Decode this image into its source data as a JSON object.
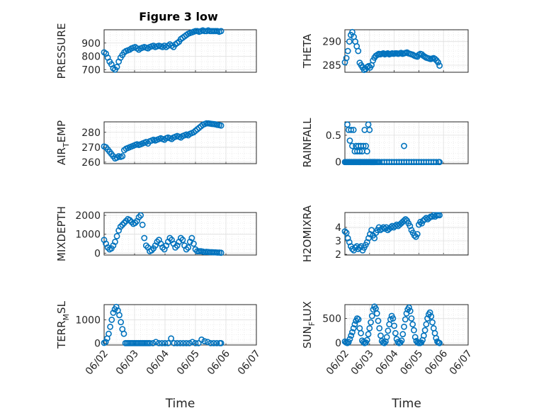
{
  "figure": {
    "title": "Figure 3 low"
  },
  "colors": {
    "marker": "#0072BD",
    "axes": "#262626",
    "grid": "#dfdfdf",
    "background": "#ffffff"
  },
  "chart_data": [
    {
      "id": "pressure",
      "type": "scatter",
      "title": "Figure 3 low",
      "ylabel": "PRESSURE",
      "ylabel_parts": [
        "PRESSURE"
      ],
      "xlabel": "",
      "ylim": [
        680,
        1000
      ],
      "yticks": [
        700,
        800,
        900
      ],
      "xlim": [
        0,
        5
      ],
      "xticks": [
        "06/02",
        "06/03",
        "06/04",
        "06/05",
        "06/06",
        "06/07"
      ],
      "x": [
        0,
        0.06,
        0.12,
        0.18,
        0.24,
        0.3,
        0.36,
        0.42,
        0.48,
        0.54,
        0.6,
        0.66,
        0.72,
        0.78,
        0.84,
        0.9,
        0.96,
        1.02,
        1.08,
        1.14,
        1.2,
        1.26,
        1.32,
        1.38,
        1.44,
        1.5,
        1.56,
        1.62,
        1.68,
        1.74,
        1.8,
        1.86,
        1.92,
        1.98,
        2.04,
        2.1,
        2.16,
        2.22,
        2.28,
        2.34,
        2.4,
        2.46,
        2.52,
        2.58,
        2.64,
        2.7,
        2.76,
        2.82,
        2.88,
        2.94,
        3.0,
        3.06,
        3.12,
        3.18,
        3.24,
        3.3,
        3.36,
        3.42,
        3.48,
        3.54,
        3.6,
        3.66,
        3.72,
        3.78,
        3.84
      ],
      "y": [
        830,
        820,
        790,
        760,
        740,
        710,
        700,
        720,
        760,
        790,
        810,
        830,
        840,
        845,
        850,
        860,
        865,
        870,
        860,
        850,
        860,
        865,
        870,
        865,
        860,
        870,
        875,
        880,
        870,
        875,
        880,
        875,
        870,
        880,
        870,
        880,
        890,
        880,
        870,
        890,
        900,
        910,
        930,
        940,
        950,
        960,
        970,
        975,
        980,
        985,
        990,
        990,
        985,
        990,
        995,
        990,
        990,
        995,
        990,
        990,
        990,
        990,
        990,
        985,
        990
      ]
    },
    {
      "id": "theta",
      "type": "scatter",
      "ylabel": "THETA",
      "ylabel_parts": [
        "THETA"
      ],
      "ylim": [
        283.5,
        292.5
      ],
      "yticks": [
        285,
        290
      ],
      "xlim": [
        0,
        5
      ],
      "xticks": [
        "06/02",
        "06/03",
        "06/04",
        "06/05",
        "06/06",
        "06/07"
      ],
      "x": [
        0,
        0.06,
        0.12,
        0.18,
        0.24,
        0.3,
        0.36,
        0.42,
        0.48,
        0.54,
        0.6,
        0.66,
        0.72,
        0.78,
        0.84,
        0.9,
        0.96,
        1.02,
        1.08,
        1.14,
        1.2,
        1.26,
        1.32,
        1.38,
        1.44,
        1.5,
        1.56,
        1.62,
        1.68,
        1.74,
        1.8,
        1.86,
        1.92,
        1.98,
        2.04,
        2.1,
        2.16,
        2.22,
        2.28,
        2.34,
        2.4,
        2.46,
        2.52,
        2.58,
        2.64,
        2.7,
        2.76,
        2.82,
        2.88,
        2.94,
        3.0,
        3.06,
        3.12,
        3.18,
        3.24,
        3.3,
        3.36,
        3.42,
        3.48,
        3.54,
        3.6,
        3.66,
        3.72,
        3.78,
        3.84
      ],
      "y": [
        285.6,
        286.5,
        288.0,
        290.0,
        291.4,
        292.0,
        291.0,
        290.0,
        289.0,
        288.0,
        285.5,
        285.0,
        284.5,
        284.0,
        284.2,
        284.6,
        284.8,
        284.5,
        285.0,
        286.0,
        286.6,
        287.0,
        287.2,
        287.4,
        287.3,
        287.4,
        287.5,
        287.3,
        287.4,
        287.5,
        287.3,
        287.4,
        287.5,
        287.4,
        287.5,
        287.5,
        287.4,
        287.5,
        287.6,
        287.4,
        287.5,
        287.6,
        287.7,
        287.5,
        287.4,
        287.3,
        287.2,
        287.0,
        286.9,
        286.8,
        287.2,
        287.4,
        287.3,
        287.0,
        286.8,
        286.6,
        286.5,
        286.4,
        286.3,
        286.4,
        286.5,
        286.3,
        286.0,
        285.6,
        284.9
      ]
    },
    {
      "id": "air_temp",
      "type": "scatter",
      "ylabel": "AIR_TEMP",
      "ylabel_parts": [
        "AIR",
        "T",
        "EMP"
      ],
      "ylim": [
        259,
        287
      ],
      "yticks": [
        260,
        270,
        280
      ],
      "xlim": [
        0,
        5
      ],
      "xticks": [
        "06/02",
        "06/03",
        "06/04",
        "06/05",
        "06/06",
        "06/07"
      ],
      "x": [
        0,
        0.06,
        0.12,
        0.18,
        0.24,
        0.3,
        0.36,
        0.42,
        0.48,
        0.54,
        0.6,
        0.66,
        0.72,
        0.78,
        0.84,
        0.9,
        0.96,
        1.02,
        1.08,
        1.14,
        1.2,
        1.26,
        1.32,
        1.38,
        1.44,
        1.5,
        1.56,
        1.62,
        1.68,
        1.74,
        1.8,
        1.86,
        1.92,
        1.98,
        2.04,
        2.1,
        2.16,
        2.22,
        2.28,
        2.34,
        2.4,
        2.46,
        2.52,
        2.58,
        2.64,
        2.7,
        2.76,
        2.82,
        2.88,
        2.94,
        3.0,
        3.06,
        3.12,
        3.18,
        3.24,
        3.3,
        3.36,
        3.42,
        3.48,
        3.54,
        3.6,
        3.66,
        3.72,
        3.78,
        3.84
      ],
      "y": [
        270.5,
        270.0,
        268.5,
        267.0,
        265.5,
        264.0,
        262.5,
        263.0,
        264.0,
        263.5,
        264.0,
        268.0,
        269.0,
        269.5,
        270.0,
        270.5,
        271.0,
        271.5,
        272.0,
        271.5,
        272.0,
        272.5,
        273.0,
        273.5,
        272.5,
        274.0,
        274.5,
        275.0,
        274.5,
        275.0,
        275.5,
        276.0,
        275.5,
        275.0,
        276.0,
        276.5,
        276.0,
        275.5,
        276.5,
        277.0,
        277.5,
        277.0,
        276.5,
        277.5,
        278.0,
        278.5,
        278.0,
        279.0,
        279.5,
        280.0,
        281.0,
        282.0,
        283.0,
        284.0,
        285.0,
        285.5,
        286.0,
        286.0,
        285.8,
        285.6,
        285.5,
        285.3,
        285.0,
        284.8,
        284.5
      ]
    },
    {
      "id": "rainfall",
      "type": "scatter",
      "ylabel": "RAINFALL",
      "ylabel_parts": [
        "RAINFALL"
      ],
      "ylim": [
        -0.03,
        0.75
      ],
      "yticks": [
        0,
        0.5
      ],
      "xlim": [
        0,
        5
      ],
      "xticks": [
        "06/02",
        "06/03",
        "06/04",
        "06/05",
        "06/06",
        "06/07"
      ],
      "x": [
        0,
        0.04,
        0.08,
        0.12,
        0.16,
        0.2,
        0.24,
        0.28,
        0.32,
        0.36,
        0.4,
        0.44,
        0.48,
        0.52,
        0.56,
        0.6,
        0.64,
        0.68,
        0.72,
        0.76,
        0.8,
        0.84,
        0.88,
        0.92,
        0.96,
        1.0,
        1.04,
        1.08,
        1.12,
        1.16,
        1.2,
        0.1,
        0.15,
        0.2,
        0.25,
        0.3,
        0.35,
        0.4,
        0.45,
        0.5,
        0.55,
        0.6,
        0.65,
        0.7,
        0.75,
        0.8,
        0.85,
        0.9,
        0.95,
        1.0,
        1.05,
        1.1,
        1.15,
        1.2,
        1.25,
        1.3,
        1.35,
        1.4,
        1.5,
        1.6,
        1.7,
        1.8,
        1.9,
        2.0,
        2.1,
        2.2,
        2.3,
        2.4,
        2.5,
        2.6,
        2.7,
        2.8,
        2.9,
        3.0,
        3.1,
        3.2,
        3.3,
        3.4,
        3.5,
        3.6,
        3.7,
        3.8,
        3.84,
        2.4
      ],
      "y": [
        0,
        0,
        0,
        0,
        0,
        0,
        0,
        0,
        0,
        0,
        0,
        0,
        0,
        0,
        0,
        0,
        0,
        0,
        0,
        0,
        0,
        0,
        0,
        0,
        0,
        0,
        0,
        0,
        0,
        0,
        0,
        0.7,
        0.6,
        0.4,
        0.6,
        0.3,
        0.6,
        0.2,
        0.3,
        0.2,
        0.3,
        0.2,
        0.3,
        0.2,
        0.3,
        0.6,
        0.3,
        0.2,
        0.7,
        0.6,
        0,
        0,
        0,
        0,
        0,
        0,
        0,
        0,
        0,
        0,
        0,
        0,
        0,
        0,
        0,
        0,
        0,
        0,
        0,
        0,
        0,
        0,
        0,
        0,
        0,
        0,
        0,
        0,
        0,
        0,
        0,
        0,
        0,
        0.3
      ]
    },
    {
      "id": "mixdepth",
      "type": "scatter",
      "ylabel": "MIXDEPTH",
      "ylabel_parts": [
        "MIXDEPTH"
      ],
      "ylim": [
        -100,
        2150
      ],
      "yticks": [
        0,
        1000,
        2000
      ],
      "xlim": [
        0,
        5
      ],
      "xticks": [
        "06/02",
        "06/03",
        "06/04",
        "06/05",
        "06/06",
        "06/07"
      ],
      "x": [
        0,
        0.06,
        0.12,
        0.18,
        0.24,
        0.3,
        0.36,
        0.42,
        0.48,
        0.54,
        0.6,
        0.66,
        0.72,
        0.78,
        0.84,
        0.9,
        0.96,
        1.02,
        1.08,
        1.14,
        1.2,
        1.26,
        1.32,
        1.38,
        1.44,
        1.5,
        1.56,
        1.62,
        1.68,
        1.74,
        1.8,
        1.86,
        1.92,
        1.98,
        2.04,
        2.1,
        2.16,
        2.22,
        2.28,
        2.34,
        2.4,
        2.46,
        2.52,
        2.58,
        2.64,
        2.7,
        2.76,
        2.82,
        2.88,
        2.94,
        3.0,
        3.06,
        3.12,
        3.18,
        3.24,
        3.3,
        3.36,
        3.42,
        3.48,
        3.54,
        3.6,
        3.66,
        3.72,
        3.78,
        3.84
      ],
      "y": [
        700,
        500,
        300,
        200,
        250,
        400,
        600,
        900,
        1200,
        1400,
        1500,
        1600,
        1700,
        1800,
        1750,
        1650,
        1550,
        1600,
        1700,
        1900,
        2000,
        1500,
        800,
        400,
        300,
        100,
        150,
        250,
        400,
        600,
        700,
        500,
        300,
        200,
        400,
        600,
        800,
        700,
        500,
        300,
        400,
        600,
        800,
        700,
        400,
        200,
        300,
        600,
        800,
        500,
        200,
        100,
        100,
        100,
        80,
        60,
        70,
        60,
        50,
        50,
        40,
        40,
        30,
        30,
        20
      ]
    },
    {
      "id": "h2omixra",
      "type": "scatter",
      "ylabel": "H2OMIXRA",
      "ylabel_parts": [
        "H2OMIXRA"
      ],
      "ylim": [
        1.95,
        5.1
      ],
      "yticks": [
        2,
        3,
        4
      ],
      "xlim": [
        0,
        5
      ],
      "xticks": [
        "06/02",
        "06/03",
        "06/04",
        "06/05",
        "06/06",
        "06/07"
      ],
      "x": [
        0,
        0.06,
        0.12,
        0.18,
        0.24,
        0.3,
        0.36,
        0.42,
        0.48,
        0.54,
        0.6,
        0.66,
        0.72,
        0.78,
        0.84,
        0.9,
        0.96,
        1.02,
        1.08,
        1.14,
        1.2,
        1.26,
        1.32,
        1.38,
        1.44,
        1.5,
        1.56,
        1.62,
        1.68,
        1.74,
        1.8,
        1.86,
        1.92,
        1.98,
        2.04,
        2.1,
        2.16,
        2.22,
        2.28,
        2.34,
        2.4,
        2.46,
        2.52,
        2.58,
        2.64,
        2.7,
        2.76,
        2.82,
        2.88,
        2.94,
        3.0,
        3.06,
        3.12,
        3.18,
        3.24,
        3.3,
        3.36,
        3.42,
        3.48,
        3.54,
        3.6,
        3.66,
        3.72,
        3.78,
        3.84
      ],
      "y": [
        3.7,
        3.6,
        3.2,
        2.9,
        2.6,
        2.4,
        2.3,
        2.5,
        2.6,
        2.4,
        2.5,
        2.6,
        2.3,
        2.5,
        2.7,
        2.9,
        3.2,
        3.5,
        3.8,
        3.4,
        3.2,
        3.6,
        3.8,
        4.0,
        3.8,
        3.9,
        4.0,
        3.9,
        4.0,
        3.8,
        3.9,
        4.0,
        4.1,
        4.0,
        4.1,
        4.2,
        4.1,
        4.2,
        4.3,
        4.4,
        4.5,
        4.6,
        4.5,
        4.3,
        4.1,
        3.8,
        3.6,
        3.4,
        3.3,
        3.5,
        4.2,
        4.4,
        4.3,
        4.5,
        4.6,
        4.7,
        4.6,
        4.7,
        4.8,
        4.8,
        4.9,
        4.8,
        4.9,
        4.9,
        4.9
      ]
    },
    {
      "id": "terr_msl",
      "type": "scatter",
      "ylabel": "TERR_MSL",
      "ylabel_parts": [
        "TERR",
        "M",
        "SL"
      ],
      "ylim": [
        -80,
        1650
      ],
      "yticks": [
        0,
        1000
      ],
      "xlim": [
        0,
        5
      ],
      "xticks": [
        "06/02",
        "06/03",
        "06/04",
        "06/05",
        "06/06",
        "06/07"
      ],
      "xlabel": "Time",
      "x": [
        0,
        0.05,
        0.1,
        0.15,
        0.2,
        0.25,
        0.3,
        0.35,
        0.4,
        0.45,
        0.5,
        0.55,
        0.6,
        0.65,
        0.7,
        0.75,
        0.8,
        0.85,
        0.9,
        0.95,
        1.0,
        1.05,
        1.1,
        1.15,
        1.2,
        1.25,
        1.3,
        1.35,
        1.4,
        1.45,
        1.5,
        1.6,
        1.7,
        1.8,
        1.9,
        2.0,
        2.1,
        2.2,
        2.3,
        2.4,
        2.5,
        2.6,
        2.7,
        2.8,
        2.9,
        3.0,
        3.1,
        3.2,
        3.3,
        3.4,
        3.5,
        3.6,
        3.7,
        3.8,
        3.84
      ],
      "y": [
        10,
        50,
        200,
        400,
        700,
        1000,
        1300,
        1450,
        1550,
        1400,
        1200,
        900,
        600,
        400,
        0,
        0,
        0,
        0,
        0,
        0,
        0,
        0,
        0,
        0,
        0,
        0,
        0,
        0,
        0,
        0,
        0,
        0,
        50,
        0,
        0,
        0,
        0,
        200,
        0,
        0,
        0,
        0,
        0,
        0,
        50,
        0,
        0,
        150,
        80,
        50,
        0,
        0,
        0,
        0,
        0
      ]
    },
    {
      "id": "sun_flux",
      "type": "scatter",
      "ylabel": "SUN_FLUX",
      "ylabel_parts": [
        "SUN",
        "F",
        "LUX"
      ],
      "ylim": [
        -40,
        780
      ],
      "yticks": [
        0,
        500
      ],
      "xlim": [
        0,
        5
      ],
      "xticks": [
        "06/02",
        "06/03",
        "06/04",
        "06/05",
        "06/06",
        "06/07"
      ],
      "xlabel": "Time",
      "x": [
        0,
        0.05,
        0.1,
        0.15,
        0.2,
        0.25,
        0.3,
        0.35,
        0.4,
        0.45,
        0.5,
        0.55,
        0.6,
        0.65,
        0.7,
        0.75,
        0.8,
        0.85,
        0.9,
        0.95,
        1.0,
        1.05,
        1.1,
        1.15,
        1.2,
        1.25,
        1.3,
        1.35,
        1.4,
        1.45,
        1.5,
        1.55,
        1.6,
        1.65,
        1.7,
        1.75,
        1.8,
        1.85,
        1.9,
        1.95,
        2.0,
        2.05,
        2.1,
        2.15,
        2.2,
        2.25,
        2.3,
        2.35,
        2.4,
        2.45,
        2.5,
        2.55,
        2.6,
        2.65,
        2.7,
        2.75,
        2.8,
        2.85,
        2.9,
        2.95,
        3.0,
        3.05,
        3.1,
        3.15,
        3.2,
        3.25,
        3.3,
        3.35,
        3.4,
        3.45,
        3.5,
        3.55,
        3.6,
        3.65,
        3.7,
        3.75,
        3.8,
        3.84
      ],
      "y": [
        30,
        10,
        0,
        20,
        80,
        150,
        220,
        300,
        380,
        450,
        500,
        480,
        300,
        200,
        50,
        20,
        0,
        10,
        60,
        180,
        300,
        420,
        550,
        680,
        740,
        700,
        600,
        450,
        300,
        150,
        40,
        10,
        0,
        30,
        120,
        250,
        380,
        480,
        550,
        500,
        350,
        200,
        80,
        20,
        0,
        10,
        50,
        180,
        330,
        480,
        600,
        680,
        720,
        650,
        500,
        380,
        260,
        120,
        40,
        10,
        0,
        0,
        10,
        60,
        150,
        260,
        380,
        500,
        580,
        620,
        540,
        420,
        300,
        200,
        100,
        30,
        10,
        0
      ]
    }
  ]
}
